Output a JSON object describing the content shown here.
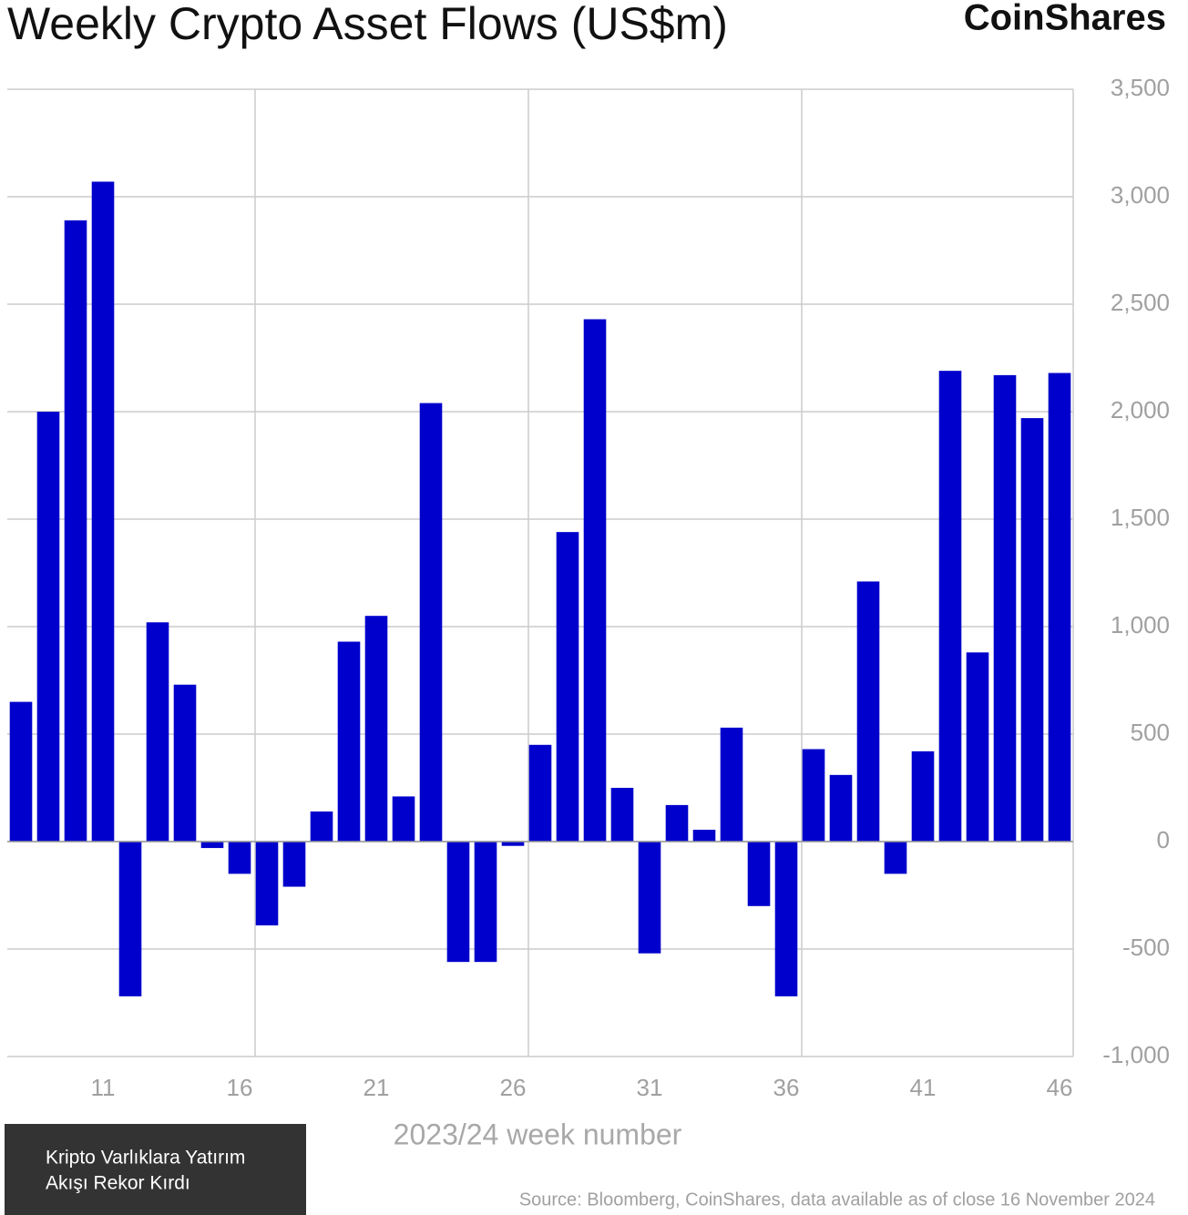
{
  "chart_data": {
    "type": "bar",
    "title": "Weekly Crypto Asset Flows (US$m)",
    "brand": "CoinShares",
    "x_label": "2023/24 week number",
    "source": "Source: Bloomberg, CoinShares, data available as of close 16 November 2024",
    "caption": [
      "Kripto Varlıklara Yatırım",
      "Akışı Rekor Kırdı"
    ],
    "x": [
      8,
      9,
      10,
      11,
      12,
      13,
      14,
      15,
      16,
      17,
      18,
      19,
      20,
      21,
      22,
      23,
      24,
      25,
      26,
      27,
      28,
      29,
      30,
      31,
      32,
      33,
      34,
      35,
      36,
      37,
      38,
      39,
      40,
      41,
      42,
      43,
      44,
      45,
      46
    ],
    "values": [
      650,
      2000,
      2890,
      3070,
      -720,
      1020,
      730,
      -30,
      -150,
      -390,
      -210,
      140,
      930,
      1050,
      210,
      2040,
      -560,
      -560,
      -20,
      450,
      1440,
      2430,
      250,
      -520,
      170,
      55,
      530,
      -300,
      -720,
      430,
      310,
      1210,
      -150,
      420,
      2190,
      880,
      2170,
      1970,
      2180
    ],
    "color": "#0000cc",
    "xlim": [
      7.5,
      46.5
    ],
    "xticks": [
      11,
      16,
      21,
      26,
      31,
      36,
      41,
      46
    ],
    "ylim": [
      -1000,
      3500
    ],
    "yticks": [
      {
        "value": -1000,
        "label": "-1,000"
      },
      -500,
      0,
      500,
      {
        "value": 1000,
        "label": "1,000"
      },
      {
        "value": 1500,
        "label": "1,500"
      },
      {
        "value": 2000,
        "label": "2,000"
      },
      {
        "value": 2500,
        "label": "2,500"
      },
      {
        "value": 3000,
        "label": "3,000"
      },
      {
        "value": 3500,
        "label": "3,500"
      }
    ],
    "grid": true,
    "y_axis_side": "right"
  }
}
